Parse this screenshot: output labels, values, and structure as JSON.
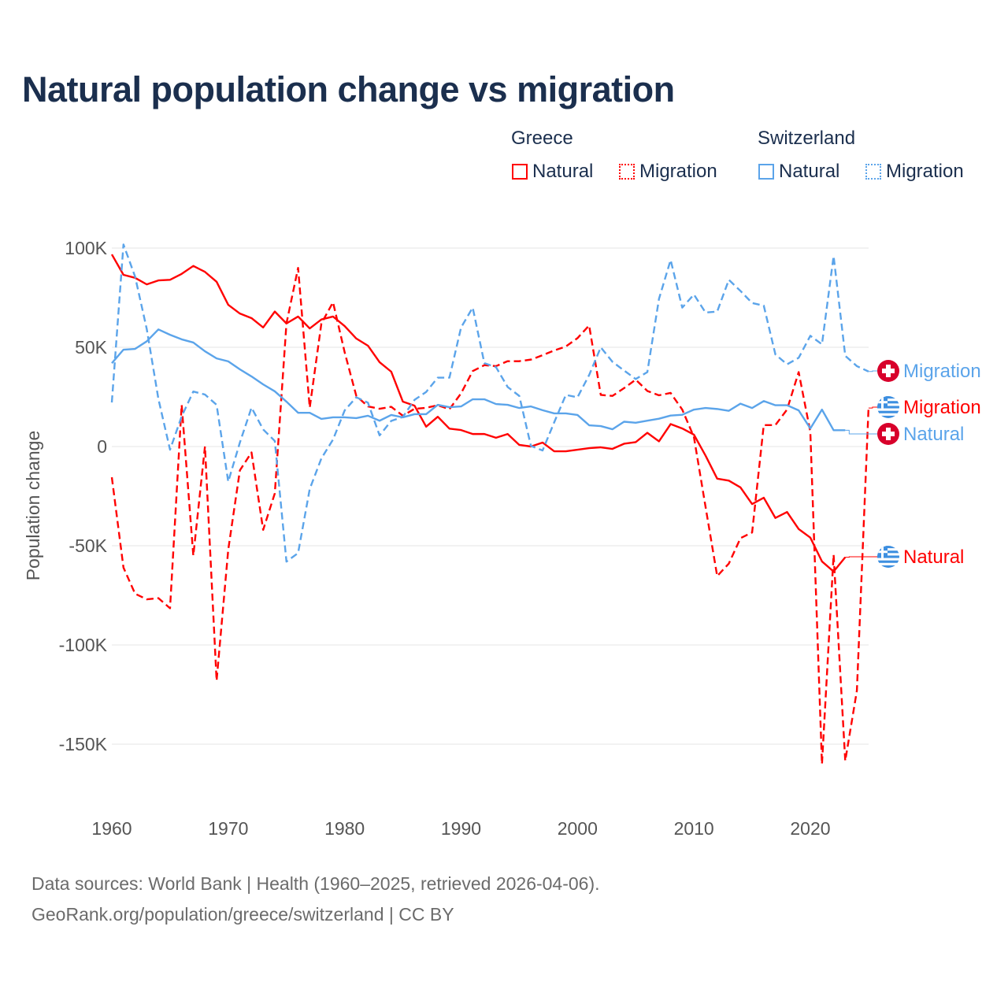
{
  "title": "Natural population change vs migration",
  "legend": {
    "groups": [
      {
        "name": "Greece",
        "items": [
          "Natural",
          "Migration"
        ]
      },
      {
        "name": "Switzerland",
        "items": [
          "Natural",
          "Migration"
        ]
      }
    ]
  },
  "sources": {
    "line1": "Data sources: World Bank | Health (1960–2025, retrieved 2026-04-06).",
    "line2": "GeoRank.org/population/greece/switzerland | CC BY"
  },
  "colors": {
    "greece": "#ff0000",
    "switzerland": "#5ba4ea",
    "swiss_flag": "#d8002b",
    "text": "#1b2f4e"
  },
  "chart_data": {
    "type": "line",
    "title": "Natural population change vs migration",
    "xlabel": "",
    "ylabel": "Population change",
    "xlim": [
      1960,
      2025
    ],
    "ylim": [
      -160000,
      100000
    ],
    "x_ticks": [
      {
        "value": 1960,
        "label": "1960"
      },
      {
        "value": 1970,
        "label": "1970"
      },
      {
        "value": 1980,
        "label": "1980"
      },
      {
        "value": 1990,
        "label": "1990"
      },
      {
        "value": 2000,
        "label": "2000"
      },
      {
        "value": 2010,
        "label": "2010"
      },
      {
        "value": 2020,
        "label": "2020"
      }
    ],
    "y_ticks": [
      {
        "value": 100,
        "label": "100K"
      },
      {
        "value": 50,
        "label": "50K"
      },
      {
        "value": 0,
        "label": "0"
      },
      {
        "value": -50,
        "label": "-50K"
      },
      {
        "value": -100,
        "label": "-100K"
      },
      {
        "value": -150,
        "label": "-150K"
      }
    ],
    "units": "thousands",
    "grid": true,
    "series": [
      {
        "name": "Greece Natural",
        "country": "Greece",
        "kind": "Natural",
        "label": "Natural",
        "style": "solid",
        "color": "#ff0000",
        "start": 1960,
        "values": [
          96.8,
          86.5,
          85,
          81.7,
          83.7,
          84,
          87,
          91,
          88,
          83,
          71.4,
          67,
          64.7,
          60,
          68,
          62,
          65.5,
          59.5,
          64,
          65.5,
          60.7,
          54.4,
          50.8,
          42.5,
          37.7,
          22.6,
          20.6,
          10,
          15,
          9,
          8.3,
          6.3,
          6.3,
          4.4,
          6.3,
          0.8,
          0,
          2,
          -2.4,
          -2.4,
          -1.6,
          -0.8,
          -0.4,
          -1.2,
          1.4,
          2.2,
          6.9,
          2.6,
          11.3,
          9.1,
          6,
          -4.6,
          -16.2,
          -17.2,
          -20.6,
          -29,
          -25.8,
          -36,
          -33,
          -41.6,
          -45.9,
          -57.9,
          -63,
          -55.8
        ]
      },
      {
        "name": "Greece Migration",
        "country": "Greece",
        "kind": "Migration",
        "label": "Migration",
        "style": "dashed",
        "color": "#ff0000",
        "start": 1960,
        "values": [
          -15.5,
          -61,
          -74.2,
          -77,
          -76.4,
          -81.5,
          21,
          -55,
          0,
          -118,
          -52,
          -12,
          -3,
          -42,
          -23.6,
          62,
          90,
          19.6,
          62,
          72.7,
          47.5,
          25.5,
          20.2,
          19,
          20,
          15.5,
          19,
          19.5,
          20.8,
          18.8,
          26.8,
          38,
          41,
          40.5,
          43,
          43,
          43.8,
          46,
          48.4,
          50.4,
          54.6,
          61,
          26,
          25.5,
          29.4,
          33.7,
          28,
          25.8,
          27,
          18.6,
          4.8,
          -30.4,
          -65.3,
          -59,
          -46.2,
          -43.3,
          10.8,
          10.8,
          18.6,
          37.5,
          7.4,
          -160,
          -54.5,
          -158.4,
          -123,
          19.4
        ]
      },
      {
        "name": "Switzerland Natural",
        "country": "Switzerland",
        "kind": "Natural",
        "label": "Natural",
        "style": "solid",
        "color": "#5ba4ea",
        "start": 1960,
        "values": [
          42,
          48.8,
          49.2,
          53,
          59,
          56.3,
          54,
          52.4,
          48,
          44.4,
          42.9,
          38.9,
          35.3,
          31.3,
          27.8,
          22.6,
          17,
          17,
          13.9,
          14.7,
          14.7,
          14.3,
          15.5,
          13,
          15.9,
          14.7,
          16.3,
          16.3,
          21,
          19.8,
          20.2,
          23.8,
          23.8,
          21.4,
          21,
          19.4,
          20.2,
          18.3,
          16.7,
          16.7,
          15.9,
          10.7,
          10.3,
          8.7,
          12.5,
          12,
          13,
          14,
          15.6,
          16,
          18.6,
          19.4,
          18.9,
          18,
          21.6,
          19.4,
          22.9,
          20.8,
          20.8,
          18.2,
          9.1,
          18.6,
          8.2,
          8.2
        ]
      },
      {
        "name": "Switzerland Migration",
        "country": "Switzerland",
        "kind": "Migration",
        "label": "Migration",
        "style": "dashed",
        "color": "#5ba4ea",
        "start": 1960,
        "values": [
          22.2,
          101.8,
          85.6,
          59.2,
          24,
          -1.6,
          15.2,
          27.7,
          26.2,
          21,
          -17.7,
          2,
          19.6,
          8.6,
          2.8,
          -58,
          -53.7,
          -21.4,
          -6,
          3.5,
          18.2,
          24.8,
          22.1,
          5.6,
          12.9,
          14.9,
          23.5,
          27.5,
          34.7,
          34.7,
          60,
          70,
          42,
          40,
          30,
          25.5,
          0.3,
          -2,
          12.2,
          26,
          24.8,
          36,
          50,
          42.7,
          38.3,
          34,
          37.5,
          74.4,
          94,
          70,
          76.6,
          67.5,
          68,
          84,
          78.4,
          72.3,
          71,
          46.4,
          41.4,
          44.7,
          55.8,
          51.5,
          96,
          45.7,
          40.5,
          37.8
        ]
      }
    ]
  }
}
